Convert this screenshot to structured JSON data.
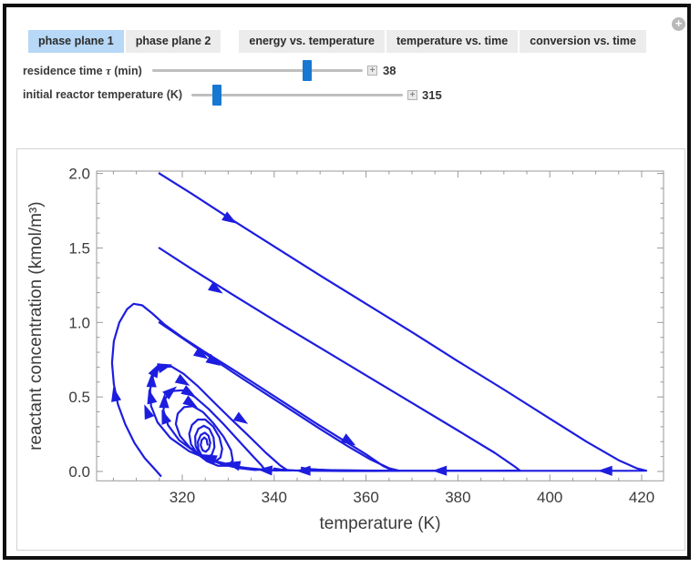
{
  "window": {
    "expand_icon": "+"
  },
  "tabs": [
    {
      "label": "phase plane 1",
      "selected": true
    },
    {
      "label": "phase plane 2",
      "selected": false
    },
    {
      "label": "energy vs. temperature",
      "selected": false
    },
    {
      "label": "temperature vs. time",
      "selected": false
    },
    {
      "label": "conversion vs. time",
      "selected": false
    }
  ],
  "controls": {
    "sliders": [
      {
        "label_prefix": "residence time ",
        "label_symbol": "τ",
        "label_suffix": " (min)",
        "value": "38",
        "thumb_pos": 0.745,
        "expand_button": "+"
      },
      {
        "label_prefix": "initial reactor temperature (K)",
        "label_symbol": "",
        "label_suffix": "",
        "value": "315",
        "thumb_pos": 0.105,
        "expand_button": "+"
      }
    ]
  },
  "chart_data": {
    "type": "line",
    "title": "",
    "xlabel": "temperature (K)",
    "ylabel": "reactant concentration (kmol/m³)",
    "xlim": [
      301.35,
      424.76
    ],
    "ylim": [
      -0.063,
      2.016
    ],
    "xticks": [
      320,
      340,
      360,
      380,
      400,
      420
    ],
    "xtick_labels": [
      "320",
      "340",
      "360",
      "380",
      "400",
      "420"
    ],
    "xminor_step": 5,
    "yticks": [
      0,
      0.5,
      1,
      1.5,
      2
    ],
    "ytick_labels": [
      "0.0",
      "0.5",
      "1.0",
      "1.5",
      "2.0"
    ],
    "yminor_step": 0.1,
    "grid": false,
    "legend": "none",
    "curve_color": "#1d1de0",
    "frame_color": "#9a9a9a",
    "text_color": "#3b3b3b",
    "series": [
      {
        "name": "trajectory-start-315K-2.0",
        "points": [
          [
            315,
            2.0
          ],
          [
            322,
            1.865
          ],
          [
            330,
            1.705
          ],
          [
            340,
            1.51
          ],
          [
            350,
            1.315
          ],
          [
            360,
            1.125
          ],
          [
            370,
            0.935
          ],
          [
            380,
            0.74
          ],
          [
            390,
            0.55
          ],
          [
            400,
            0.355
          ],
          [
            408,
            0.2
          ],
          [
            415,
            0.075
          ],
          [
            419,
            0.02
          ],
          [
            421,
            0.005
          ],
          [
            416,
            0.004
          ],
          [
            408,
            0.004
          ],
          [
            396,
            0.004
          ],
          [
            384,
            0.004
          ],
          [
            372,
            0.004
          ],
          [
            362,
            0.005
          ],
          [
            354,
            0.007
          ],
          [
            348.5,
            0.013
          ],
          [
            347,
            0.02
          ]
        ]
      },
      {
        "name": "trajectory-start-315K-1.5",
        "points": [
          [
            315,
            1.5
          ],
          [
            322,
            1.36
          ],
          [
            330,
            1.205
          ],
          [
            340,
            1.015
          ],
          [
            350,
            0.83
          ],
          [
            360,
            0.645
          ],
          [
            370,
            0.46
          ],
          [
            380,
            0.275
          ],
          [
            388,
            0.125
          ],
          [
            392.5,
            0.03
          ],
          [
            393.5,
            0.006
          ],
          [
            388,
            0.005
          ],
          [
            378,
            0.005
          ],
          [
            368,
            0.005
          ],
          [
            358,
            0.006
          ],
          [
            351,
            0.009
          ],
          [
            347.5,
            0.016
          ],
          [
            346,
            0.025
          ]
        ]
      },
      {
        "name": "trajectory-start-315K-1.0",
        "points": [
          [
            315,
            1.0
          ],
          [
            320,
            0.895
          ],
          [
            326,
            0.77
          ],
          [
            332,
            0.645
          ],
          [
            338,
            0.525
          ],
          [
            344,
            0.405
          ],
          [
            350,
            0.285
          ],
          [
            356,
            0.17
          ],
          [
            361,
            0.08
          ],
          [
            365,
            0.022
          ],
          [
            367.3,
            0.004
          ],
          [
            362,
            0.003
          ],
          [
            355,
            0.003
          ],
          [
            349,
            0.004
          ],
          [
            344.5,
            0.006
          ],
          [
            341.5,
            0.012
          ],
          [
            340,
            0.02
          ]
        ]
      },
      {
        "name": "trajectory-spiral-start-315K-0.0",
        "points": [
          [
            315.3,
            -0.03
          ],
          [
            314,
            0.015
          ],
          [
            311.8,
            0.09
          ],
          [
            309.6,
            0.19
          ],
          [
            307.6,
            0.315
          ],
          [
            306,
            0.45
          ],
          [
            305.1,
            0.585
          ],
          [
            304.7,
            0.73
          ],
          [
            305.1,
            0.875
          ],
          [
            306.3,
            1.0
          ],
          [
            308,
            1.09
          ],
          [
            309.4,
            1.125
          ],
          [
            311.3,
            1.115
          ],
          [
            313.5,
            1.06
          ],
          [
            316.2,
            0.985
          ],
          [
            320,
            0.9
          ],
          [
            325,
            0.8
          ],
          [
            331,
            0.685
          ],
          [
            337,
            0.565
          ],
          [
            343,
            0.445
          ],
          [
            349,
            0.325
          ],
          [
            355,
            0.21
          ],
          [
            360,
            0.115
          ],
          [
            363.8,
            0.035
          ],
          [
            365.8,
            0.006
          ],
          [
            361,
            0.004
          ],
          [
            354,
            0.005
          ],
          [
            348.3,
            0.01
          ],
          [
            347.6,
            0.022
          ],
          [
            346.4,
            0.007
          ],
          [
            342,
            0.006
          ],
          [
            337.5,
            0.012
          ],
          [
            332,
            0.03
          ],
          [
            326.5,
            0.07
          ],
          [
            321.5,
            0.135
          ],
          [
            317.4,
            0.225
          ],
          [
            314.6,
            0.33
          ],
          [
            313.2,
            0.44
          ],
          [
            313,
            0.55
          ],
          [
            313.7,
            0.645
          ],
          [
            315.2,
            0.7
          ],
          [
            317.6,
            0.705
          ],
          [
            320.3,
            0.655
          ],
          [
            323.3,
            0.575
          ],
          [
            326.7,
            0.47
          ],
          [
            330.5,
            0.355
          ],
          [
            334.4,
            0.24
          ],
          [
            338.2,
            0.125
          ],
          [
            341.3,
            0.04
          ],
          [
            342.8,
            0.01
          ],
          [
            340.5,
            0.006
          ],
          [
            336.5,
            0.012
          ],
          [
            332,
            0.032
          ],
          [
            327.4,
            0.068
          ],
          [
            323,
            0.125
          ],
          [
            319.3,
            0.21
          ],
          [
            316.9,
            0.31
          ],
          [
            315.9,
            0.41
          ],
          [
            316.3,
            0.49
          ],
          [
            317.9,
            0.54
          ],
          [
            320.1,
            0.545
          ],
          [
            322.7,
            0.5
          ],
          [
            325.7,
            0.42
          ],
          [
            328.9,
            0.32
          ],
          [
            332,
            0.215
          ],
          [
            335,
            0.115
          ],
          [
            337.2,
            0.042
          ],
          [
            337.9,
            0.014
          ],
          [
            335.8,
            0.01
          ],
          [
            332.4,
            0.022
          ],
          [
            328.6,
            0.048
          ],
          [
            324.9,
            0.092
          ],
          [
            321.7,
            0.158
          ],
          [
            319.5,
            0.238
          ],
          [
            318.6,
            0.318
          ],
          [
            319,
            0.388
          ],
          [
            320.4,
            0.432
          ],
          [
            322.3,
            0.438
          ],
          [
            324.5,
            0.398
          ],
          [
            326.8,
            0.322
          ],
          [
            329,
            0.232
          ],
          [
            330.6,
            0.142
          ],
          [
            331,
            0.072
          ],
          [
            329.9,
            0.038
          ],
          [
            327.8,
            0.038
          ],
          [
            325.4,
            0.068
          ],
          [
            323.3,
            0.118
          ],
          [
            321.9,
            0.182
          ],
          [
            321.5,
            0.252
          ],
          [
            322.1,
            0.312
          ],
          [
            323.4,
            0.348
          ],
          [
            325,
            0.348
          ],
          [
            326.7,
            0.302
          ],
          [
            328.1,
            0.228
          ],
          [
            328.7,
            0.152
          ],
          [
            328.3,
            0.092
          ],
          [
            326.9,
            0.062
          ],
          [
            325.2,
            0.072
          ],
          [
            323.8,
            0.112
          ],
          [
            322.9,
            0.172
          ],
          [
            322.8,
            0.236
          ],
          [
            323.5,
            0.286
          ],
          [
            324.7,
            0.306
          ],
          [
            325.9,
            0.286
          ],
          [
            326.8,
            0.227
          ],
          [
            327,
            0.162
          ],
          [
            326.4,
            0.112
          ],
          [
            325.3,
            0.092
          ],
          [
            324.2,
            0.107
          ],
          [
            323.5,
            0.15
          ],
          [
            323.4,
            0.2
          ],
          [
            324,
            0.244
          ],
          [
            324.9,
            0.26
          ],
          [
            325.7,
            0.24
          ],
          [
            326.1,
            0.192
          ],
          [
            325.8,
            0.152
          ],
          [
            325.1,
            0.132
          ],
          [
            324.4,
            0.142
          ],
          [
            324,
            0.176
          ],
          [
            324.2,
            0.21
          ],
          [
            324.8,
            0.228
          ],
          [
            325.3,
            0.214
          ],
          [
            325.5,
            0.18
          ]
        ]
      }
    ],
    "arrows": [
      [
        330.5,
        1.69,
        32
      ],
      [
        412,
        0.004,
        180
      ],
      [
        327.5,
        1.22,
        32
      ],
      [
        376,
        0.005,
        180
      ],
      [
        324.3,
        0.78,
        32
      ],
      [
        327,
        0.735,
        32
      ],
      [
        356.4,
        0.2,
        32
      ],
      [
        346.3,
        0.005,
        180
      ],
      [
        305.3,
        0.52,
        258
      ],
      [
        312.3,
        0.405,
        249
      ],
      [
        313.05,
        0.505,
        256
      ],
      [
        313.35,
        0.615,
        272
      ],
      [
        314.3,
        0.685,
        298
      ],
      [
        316.3,
        0.705,
        345
      ],
      [
        320.3,
        0.6,
        31
      ],
      [
        333,
        0.345,
        33
      ],
      [
        316.05,
        0.37,
        250
      ],
      [
        316.1,
        0.475,
        272
      ],
      [
        317.6,
        0.54,
        320
      ],
      [
        321.6,
        0.525,
        31
      ],
      [
        322,
        0.455,
        33
      ],
      [
        325.8,
        0.095,
        204
      ],
      [
        331,
        0.048,
        193
      ],
      [
        338,
        0.01,
        184
      ]
    ]
  }
}
